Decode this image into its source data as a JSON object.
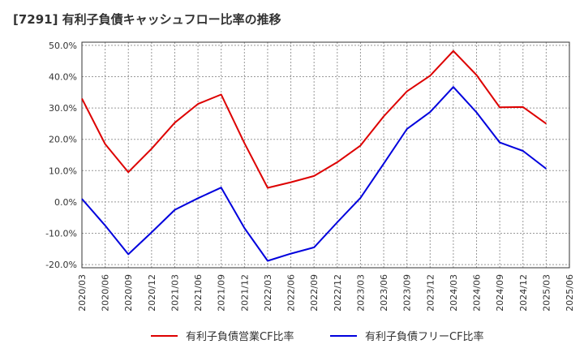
{
  "chart_data": {
    "type": "line",
    "title": "[7291]  有利子負債キャッシュフロー比率の推移",
    "x": [
      "2020/03",
      "2020/06",
      "2020/09",
      "2020/12",
      "2021/03",
      "2021/06",
      "2021/09",
      "2021/12",
      "2022/03",
      "2022/06",
      "2022/09",
      "2022/12",
      "2023/03",
      "2023/06",
      "2023/09",
      "2023/12",
      "2024/03",
      "2024/06",
      "2024/09",
      "2024/12",
      "2025/03",
      "2025/06"
    ],
    "series": [
      {
        "name": "有利子負債営業CF比率",
        "color": "#dd0000",
        "values": [
          33.0,
          18.5,
          9.5,
          17.0,
          25.3,
          31.3,
          34.3,
          18.8,
          4.5,
          6.3,
          8.3,
          12.7,
          18.0,
          27.3,
          35.3,
          40.3,
          48.2,
          40.5,
          30.2,
          30.3,
          25.0,
          null
        ]
      },
      {
        "name": "有利子負債フリーCF比率",
        "color": "#0000dd",
        "values": [
          1.0,
          -7.5,
          -16.7,
          -9.7,
          -2.5,
          1.2,
          4.6,
          -8.3,
          -18.8,
          -16.5,
          -14.5,
          -6.5,
          1.3,
          12.2,
          23.3,
          28.7,
          36.7,
          28.6,
          19.0,
          16.3,
          10.6,
          null
        ]
      }
    ],
    "yticks": [
      "50.0%",
      "40.0%",
      "30.0%",
      "20.0%",
      "10.0%",
      "0.0%",
      "-10.0%",
      "-20.0%"
    ],
    "ylim": [
      -21.0,
      51.0
    ],
    "y_tick_values": [
      50,
      40,
      30,
      20,
      10,
      0,
      -10,
      -20
    ],
    "grid": true,
    "legend_position": "bottom"
  }
}
